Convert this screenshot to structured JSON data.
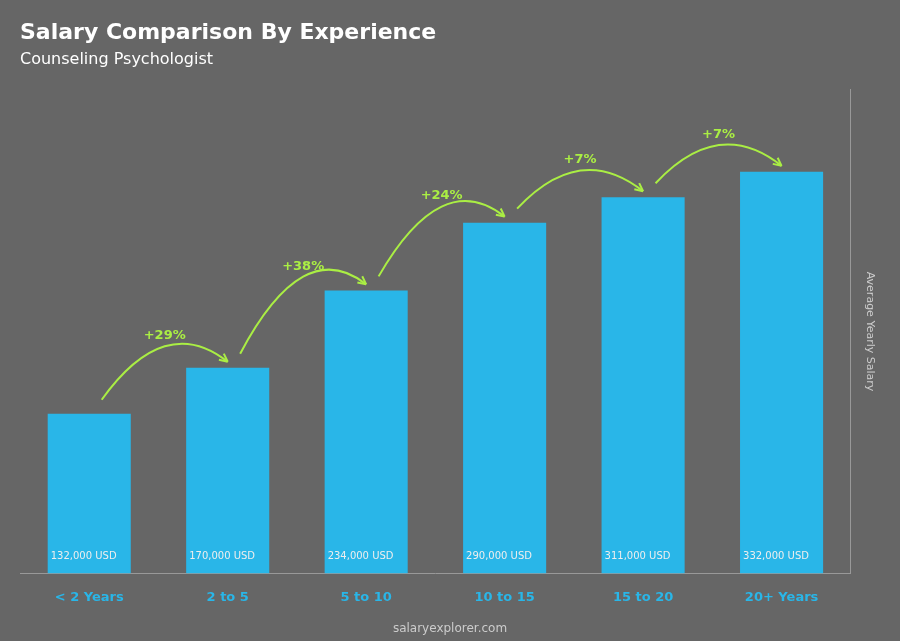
{
  "chart_data": {
    "type": "bar",
    "title": "Salary Comparison By Experience",
    "subtitle": "Counseling Psychologist",
    "categories": [
      "< 2 Years",
      "2 to 5",
      "5 to 10",
      "10 to 15",
      "15 to 20",
      "20+ Years"
    ],
    "values": [
      132000,
      170000,
      234000,
      290000,
      311000,
      332000
    ],
    "value_labels": [
      "132,000 USD",
      "170,000 USD",
      "234,000 USD",
      "290,000 USD",
      "311,000 USD",
      "332,000 USD"
    ],
    "data_labels": true,
    "color": "#29b6e8",
    "ylabel": "Average Yearly Salary",
    "ylim": [
      0,
      400000
    ],
    "tick_labels": "x",
    "grid": false,
    "annotations": [
      {
        "text": "+29%",
        "from": "< 2 Years",
        "to": "2 to 5"
      },
      {
        "text": "+38%",
        "from": "2 to 5",
        "to": "5 to 10"
      },
      {
        "text": "+24%",
        "from": "5 to 10",
        "to": "10 to 15"
      },
      {
        "text": "+7%",
        "from": "10 to 15",
        "to": "15 to 20"
      },
      {
        "text": "+7%",
        "from": "15 to 20",
        "to": "20+ Years"
      },
      {
        "text": "salaryexplorer.com"
      }
    ]
  }
}
